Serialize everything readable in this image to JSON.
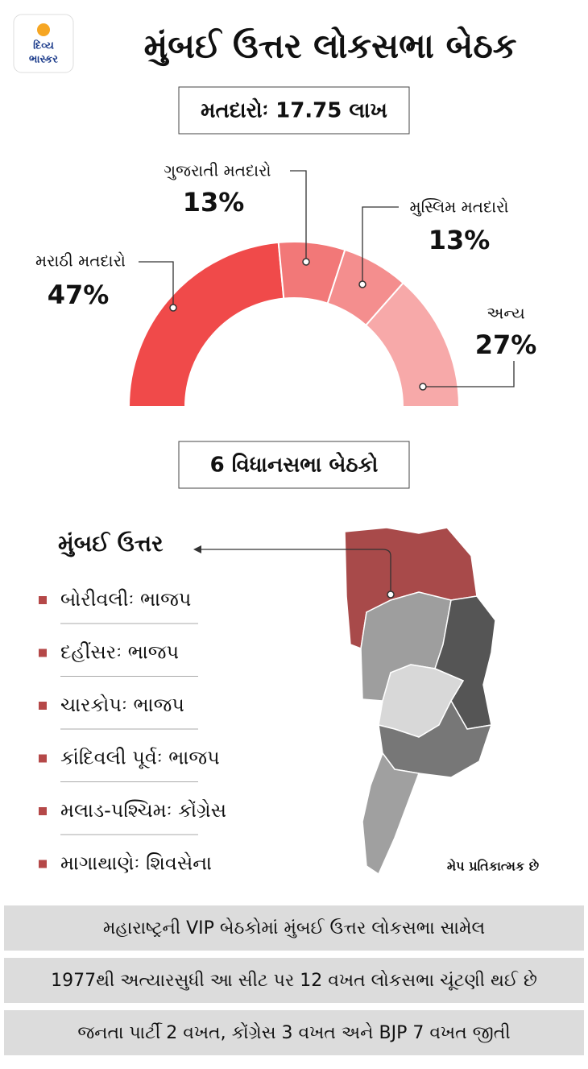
{
  "logo": {
    "line1": "દિવ્ય",
    "line2": "ભાસ્કર"
  },
  "title": "મુંબઈ ઉત્તર લોકસભા બેઠક",
  "voters_box": "મતદારોઃ 17.75 લાખ",
  "chart_data": {
    "type": "semi-donut",
    "categories": [
      "મરાઠી મતદારો",
      "ગુજરાતી મતદારો",
      "મુસ્લિમ મતદારો",
      "અન્ય"
    ],
    "values": [
      47,
      13,
      13,
      27
    ],
    "value_labels": [
      "47%",
      "13%",
      "13%",
      "27%"
    ],
    "colors": [
      "#f04a4a",
      "#f27878",
      "#f48e8e",
      "#f7a9a9"
    ]
  },
  "seats_box": "6 વિધાનસભા બેઠકો",
  "map_section": {
    "title": "મુંબઈ ઉત્તર",
    "seats": [
      "બોરીવલીઃ ભાજપ",
      "દહીંસરઃ ભાજપ",
      "ચારકોપઃ ભાજપ",
      "કાંદિવલી પૂર્વઃ ભાજપ",
      "મલાડ-પશ્ચિમઃ કોંગ્રેસ",
      "માગાથાણેઃ શિવસેના"
    ],
    "map_note": "મેપ પ્રતિકાત્મક છે"
  },
  "facts": [
    "મહારાષ્ટ્રની VIP બેઠકોમાં મુંબઈ ઉત્તર લોકસભા સામેલ",
    "1977થી અત્યારસુધી આ સીટ પર 12 વખત લોકસભા ચૂંટણી થઈ છે",
    "જનતા પાર્ટી 2 વખત, કોંગ્રેસ 3 વખત અને BJP 7 વખત જીતી"
  ]
}
